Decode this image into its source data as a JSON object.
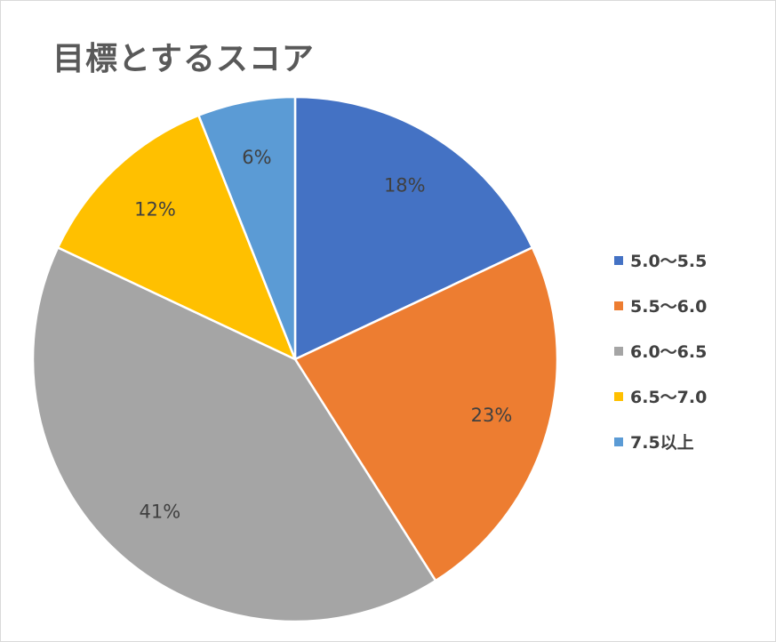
{
  "chart_data": {
    "type": "pie",
    "title": "目標とするスコア",
    "legend_position": "right",
    "slices": [
      {
        "label": "5.0〜5.5",
        "value": 18,
        "display": "18%",
        "color": "#4472c4"
      },
      {
        "label": "5.5〜6.0",
        "value": 23,
        "display": "23%",
        "color": "#ed7d31"
      },
      {
        "label": "6.0〜6.5",
        "value": 41,
        "display": "41%",
        "color": "#a5a5a5"
      },
      {
        "label": "6.5〜7.0",
        "value": 12,
        "display": "12%",
        "color": "#ffc000"
      },
      {
        "label": "7.5以上",
        "value": 6,
        "display": "6%",
        "color": "#5b9bd5"
      }
    ]
  }
}
